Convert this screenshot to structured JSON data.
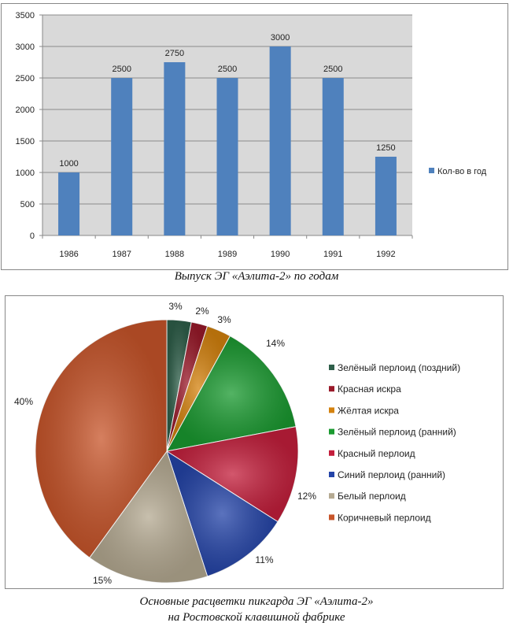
{
  "chart_data": [
    {
      "type": "bar",
      "title": "",
      "caption": "Выпуск ЭГ «Аэлита-2» по годам",
      "categories": [
        "1986",
        "1987",
        "1988",
        "1989",
        "1990",
        "1991",
        "1992"
      ],
      "series": [
        {
          "name": "Кол-во в год",
          "values": [
            1000,
            2500,
            2750,
            2500,
            3000,
            2500,
            1250
          ],
          "color": "#4f81bd"
        }
      ],
      "data_labels": [
        "1000",
        "2500",
        "2750",
        "2500",
        "3000",
        "2500",
        "1250"
      ],
      "ylim": [
        0,
        3500
      ],
      "yticks": [
        "0",
        "500",
        "1000",
        "1500",
        "2000",
        "2500",
        "3000",
        "3500"
      ],
      "xlabel": "",
      "ylabel": "",
      "grid": true,
      "legend": "right"
    },
    {
      "type": "pie",
      "caption_line1": "Основные расцветки пикгарда ЭГ «Аэлита-2»",
      "caption_line2": "на Ростовской клавишной фабрике",
      "labels": [
        "Зелёный перлоид (поздний)",
        "Красная искра",
        "Жёлтая искра",
        "Зелёный перлоид (ранний)",
        "Красный перлоид",
        "Синий перлоид (ранний)",
        "Белый перлоид",
        "Коричневый перлоид"
      ],
      "values": [
        3,
        2,
        3,
        14,
        12,
        11,
        15,
        40
      ],
      "data_labels": [
        "3%",
        "2%",
        "3%",
        "14%",
        "12%",
        "11%",
        "15%",
        "40%"
      ],
      "colors": [
        "#2f5f4a",
        "#9a1a2a",
        "#d4820e",
        "#1a9a30",
        "#c41f3c",
        "#2444a8",
        "#b5aa92",
        "#c8552a"
      ],
      "legend": "right"
    }
  ]
}
